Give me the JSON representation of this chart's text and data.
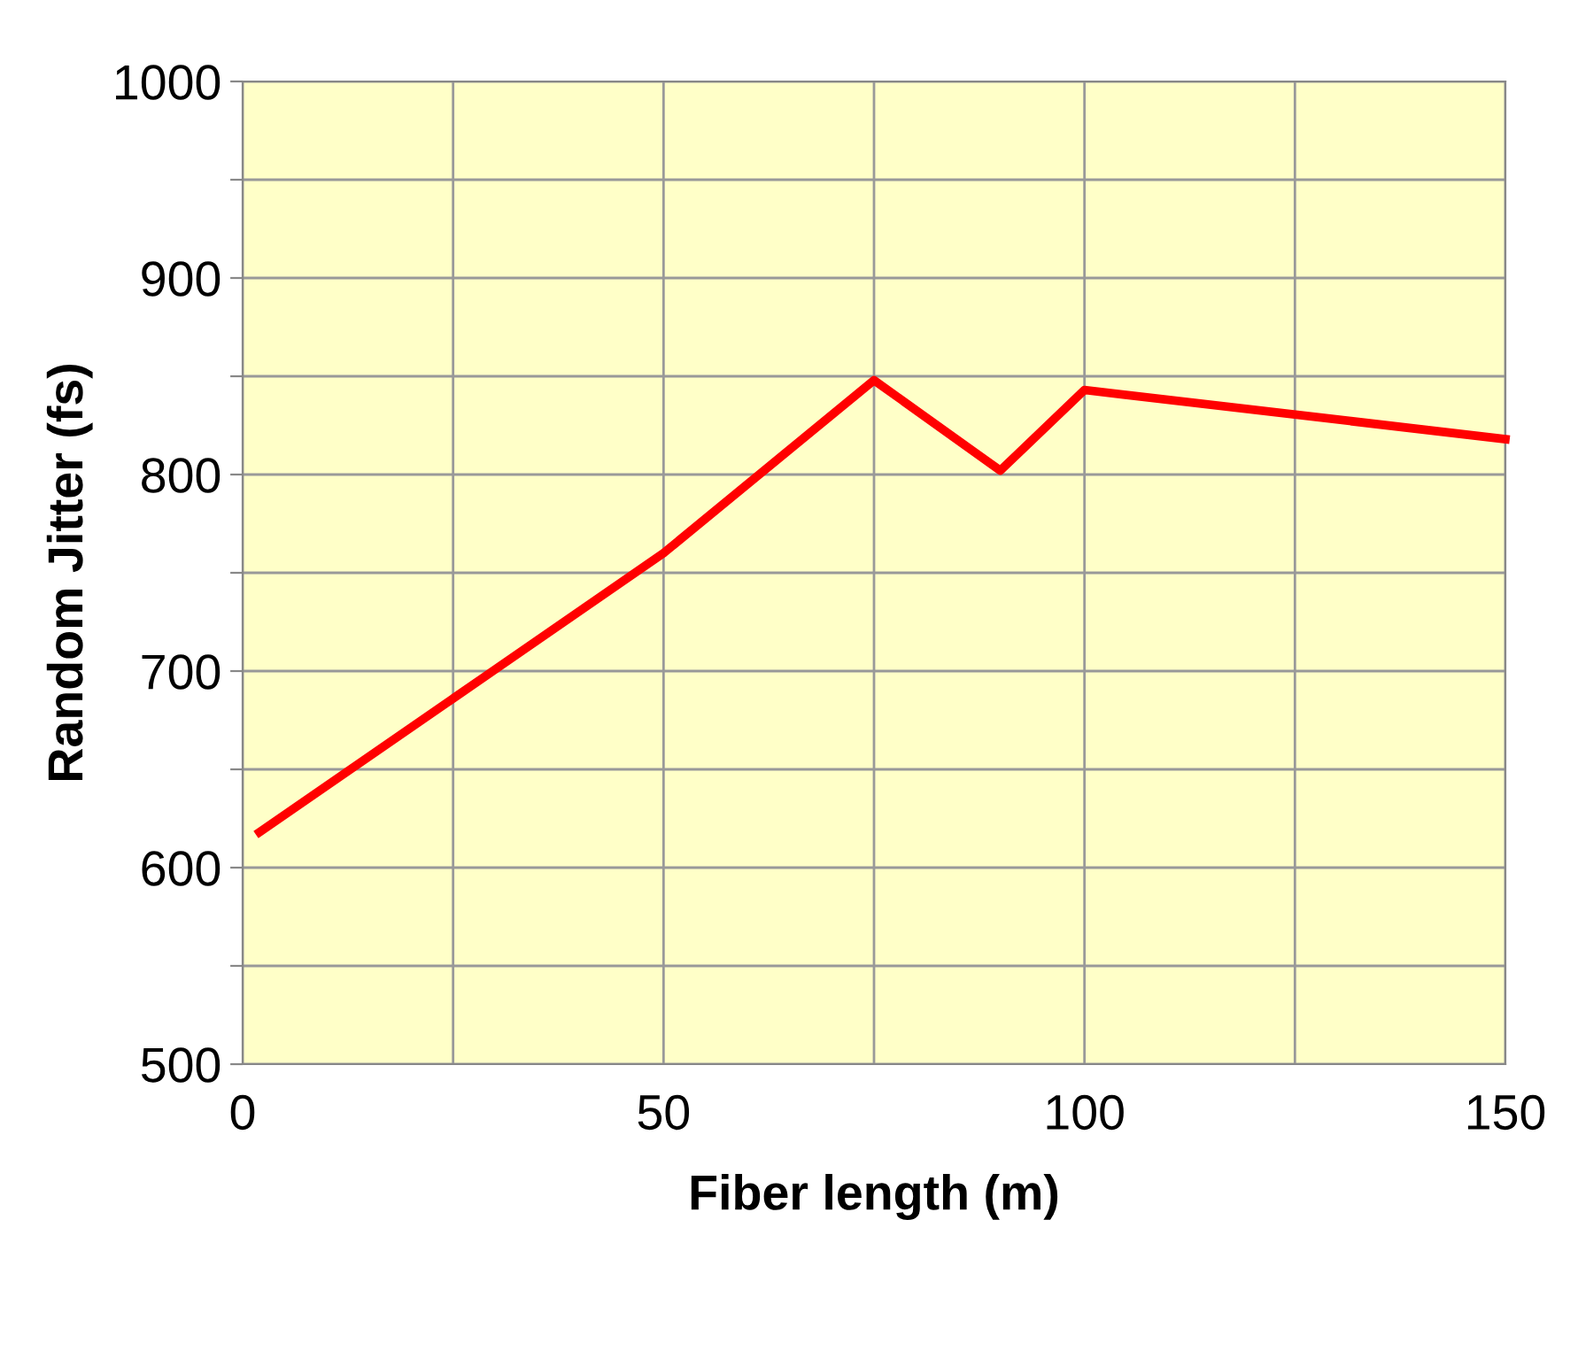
{
  "chart_data": {
    "type": "line",
    "xlabel": "Fiber length (m)",
    "ylabel": "Random Jitter (fs)",
    "x": [
      2,
      50,
      75,
      90,
      100,
      150
    ],
    "series": [
      {
        "color": "#ff0000",
        "values": [
          618,
          760,
          848,
          802,
          843,
          818
        ]
      }
    ],
    "xlim": [
      0,
      150
    ],
    "xticks": [
      0,
      {
        "value": 25,
        "label": null
      },
      50,
      {
        "value": 75,
        "label": null
      },
      100,
      {
        "value": 125,
        "label": null
      },
      150
    ],
    "ylim": [
      500,
      1000
    ],
    "yticks": [
      500,
      {
        "value": 550,
        "label": null
      },
      600,
      {
        "value": 650,
        "label": null
      },
      700,
      {
        "value": 750,
        "label": null
      },
      800,
      {
        "value": 850,
        "label": null
      },
      900,
      {
        "value": 950,
        "label": null
      },
      1000
    ],
    "grid": true,
    "marker": "none",
    "line_style": "solid"
  }
}
